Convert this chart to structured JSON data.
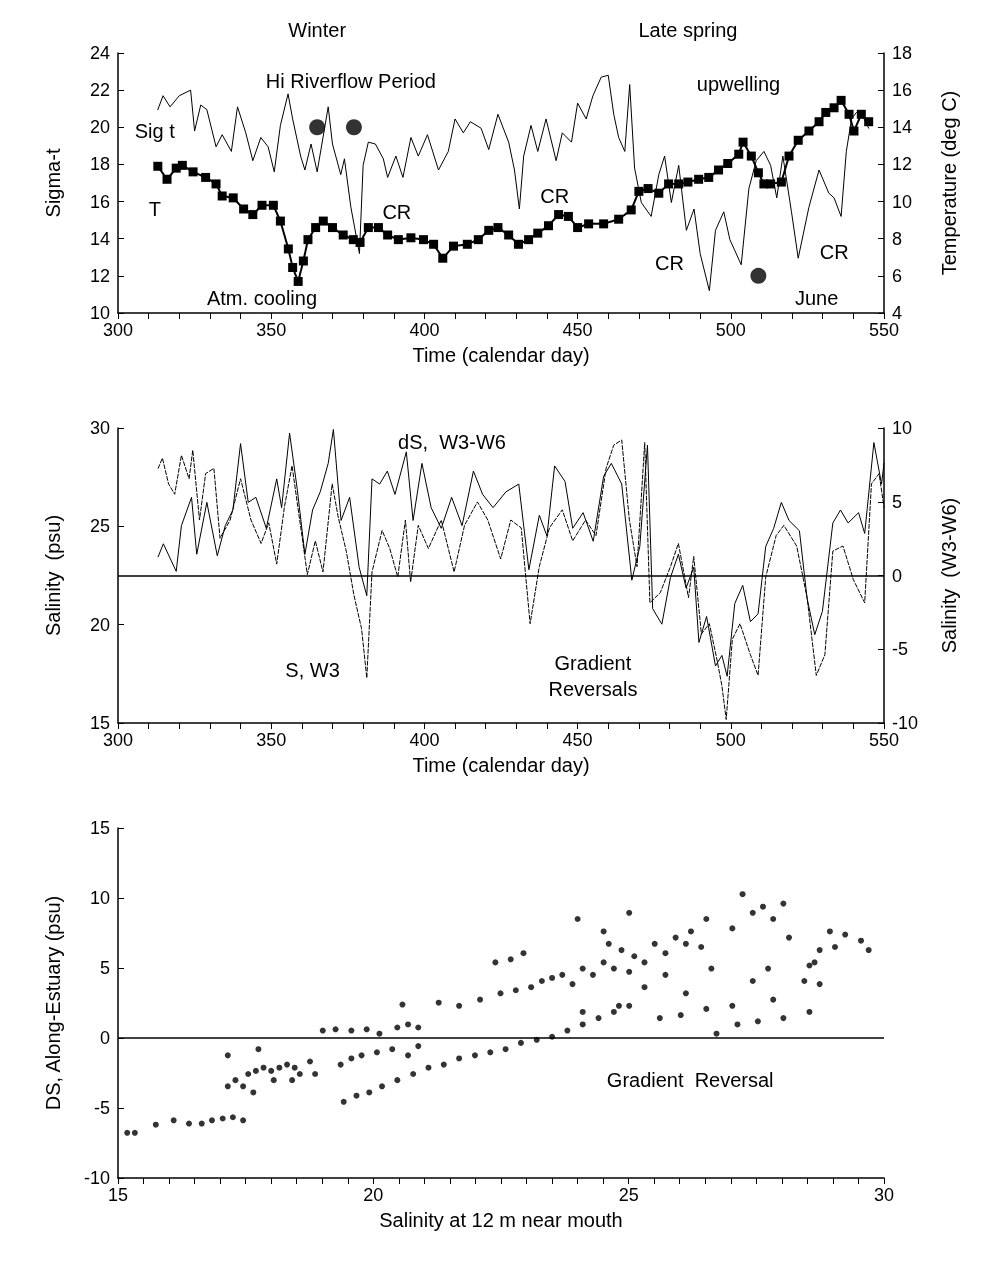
{
  "chart_data": [
    {
      "type": "line",
      "xlabel": "Time (calendar day)",
      "ylabel": "Sigma-t",
      "y2label": "Temperature (deg C)",
      "xlim": [
        300,
        550
      ],
      "xticks": [
        300,
        {
          "value": 310,
          "label": null
        },
        {
          "value": 320,
          "label": null
        },
        {
          "value": 330,
          "label": null
        },
        {
          "value": 340,
          "label": null
        },
        350,
        {
          "value": 360,
          "label": null
        },
        {
          "value": 370,
          "label": null
        },
        {
          "value": 380,
          "label": null
        },
        {
          "value": 390,
          "label": null
        },
        400,
        {
          "value": 410,
          "label": null
        },
        {
          "value": 420,
          "label": null
        },
        {
          "value": 430,
          "label": null
        },
        {
          "value": 440,
          "label": null
        },
        450,
        {
          "value": 460,
          "label": null
        },
        {
          "value": 470,
          "label": null
        },
        {
          "value": 480,
          "label": null
        },
        {
          "value": 490,
          "label": null
        },
        500,
        {
          "value": 510,
          "label": null
        },
        {
          "value": 520,
          "label": null
        },
        {
          "value": 530,
          "label": null
        },
        {
          "value": 540,
          "label": null
        },
        550
      ],
      "ylim": [
        10,
        24
      ],
      "yticks": [
        10,
        12,
        14,
        16,
        18,
        20,
        22,
        24
      ],
      "y2lim": [
        4,
        18
      ],
      "y2ticks": [
        4,
        6,
        8,
        10,
        12,
        14,
        16,
        18
      ],
      "series": [
        {
          "color": "#000000",
          "marker": "none",
          "line_style": "solid",
          "x": [
            313,
            314.7,
            317,
            320,
            323.7,
            325,
            327,
            329,
            332,
            334,
            337,
            339,
            341.7,
            344,
            346.6,
            349,
            351,
            353,
            355.5,
            357,
            359.6,
            361,
            363,
            365,
            368.6,
            370,
            372.7,
            373.9,
            376,
            378.8,
            380,
            381.7,
            384,
            386.6,
            388,
            390.7,
            393,
            395.6,
            398,
            401,
            404.6,
            407.8,
            410,
            412.7,
            415,
            418.5,
            421,
            424,
            427.5,
            429.4,
            431,
            432.4,
            434.8,
            437,
            439.7,
            443,
            445,
            448,
            450,
            452.8,
            455,
            457.7,
            460,
            461.8,
            463.4,
            465.4,
            467,
            468.6,
            470.8,
            474,
            476.5,
            478.4,
            480.6,
            483,
            485.5,
            488,
            490,
            493,
            495,
            497.7,
            499.7,
            503.4,
            505.9,
            508.3,
            510.8,
            513,
            515,
            517,
            519.8,
            522,
            525.5,
            528.8,
            532,
            533.7,
            536,
            537.7,
            539.4,
            541,
            543.5,
            545
          ],
          "values": [
            20.95,
            21.7,
            21.1,
            21.7,
            22,
            19.8,
            21.2,
            20.95,
            18.95,
            19.6,
            18.7,
            21.1,
            19.7,
            18.2,
            19.45,
            18.95,
            17.6,
            20.1,
            21.8,
            20.45,
            18.45,
            17.7,
            19.1,
            17.6,
            21.1,
            19.1,
            17.45,
            18.3,
            15.7,
            13.2,
            17.95,
            19.2,
            19.1,
            18.3,
            17.3,
            18.45,
            17.3,
            19.45,
            18.45,
            19.6,
            17.7,
            18.7,
            20.45,
            19.7,
            20.3,
            19.95,
            18.8,
            20.7,
            19.2,
            17.7,
            15.6,
            18.45,
            20.1,
            18.7,
            20.45,
            18.2,
            19.7,
            19.2,
            21.3,
            20.45,
            21.7,
            22.7,
            22.8,
            20.7,
            19.45,
            18.7,
            22.3,
            17.8,
            15.95,
            15.2,
            17.45,
            18.45,
            15.95,
            17.95,
            14.45,
            15.6,
            13.2,
            11.2,
            14.45,
            15.45,
            13.95,
            12.6,
            16.7,
            18.2,
            18.7,
            17.95,
            16.2,
            18.45,
            15.45,
            12.95,
            15.7,
            17.7,
            16.45,
            16.2,
            15.2,
            18.7,
            20.45,
            20.8,
            20.45,
            19.95
          ]
        },
        {
          "color": "#000000",
          "marker": "square",
          "line_style": "dotted",
          "axis": "y2",
          "x": [
            313,
            316,
            319,
            321,
            324.5,
            328.6,
            332,
            334,
            337.6,
            341,
            344,
            347,
            350.7,
            353,
            355.6,
            357,
            358.8,
            360.5,
            362,
            364.5,
            367,
            370,
            373.5,
            376.8,
            379,
            381.7,
            385,
            388,
            391.5,
            395.6,
            399.7,
            403,
            406,
            409.5,
            414,
            417.6,
            421,
            424,
            427.5,
            430.7,
            434,
            437,
            440.5,
            443.8,
            447,
            450,
            453.6,
            458.5,
            463.4,
            467.5,
            470,
            473,
            476.5,
            479.7,
            483,
            486,
            489.5,
            492.8,
            496,
            499,
            502.6,
            504,
            506.7,
            509,
            510.8,
            513,
            516.5,
            519,
            522,
            525.5,
            528.8,
            531,
            533.7,
            536,
            538.6,
            540.2,
            542.6,
            545
          ],
          "values": [
            11.9,
            11.2,
            11.8,
            11.95,
            11.6,
            11.3,
            10.95,
            10.3,
            10.2,
            9.6,
            9.3,
            9.8,
            9.8,
            8.95,
            7.45,
            6.45,
            5.7,
            6.8,
            7.95,
            8.6,
            8.95,
            8.6,
            8.2,
            7.95,
            7.8,
            8.6,
            8.6,
            8.2,
            7.95,
            8.05,
            7.95,
            7.7,
            6.95,
            7.6,
            7.7,
            7.95,
            8.45,
            8.6,
            8.2,
            7.7,
            7.95,
            8.3,
            8.7,
            9.3,
            9.2,
            8.6,
            8.8,
            8.8,
            9.05,
            9.55,
            10.55,
            10.7,
            10.45,
            10.95,
            10.95,
            11.05,
            11.2,
            11.3,
            11.7,
            12.05,
            12.55,
            13.2,
            12.45,
            11.55,
            10.95,
            10.95,
            11.05,
            12.45,
            13.3,
            13.8,
            14.3,
            14.8,
            15.05,
            15.45,
            14.7,
            13.8,
            14.7,
            14.3
          ]
        },
        {
          "type": "scatter",
          "color": "#000000",
          "marker": "circle",
          "x": [
            365,
            377,
            509
          ],
          "values": [
            20,
            20,
            12
          ]
        }
      ],
      "annotations": [
        "Winter",
        "Late spring",
        "Hi Riverflow Period",
        "Sig t",
        "T",
        "Atm. cooling",
        "CR",
        "CR",
        "CR",
        "CR",
        "upwelling",
        "June"
      ]
    },
    {
      "type": "line",
      "xlabel": "Time (calendar day)",
      "ylabel": "Salinity  (psu)",
      "y2label": "Salinity  (W3-W6)",
      "xlim": [
        300,
        550
      ],
      "xticks": [
        300,
        {
          "value": 310,
          "label": null
        },
        {
          "value": 320,
          "label": null
        },
        {
          "value": 330,
          "label": null
        },
        {
          "value": 340,
          "label": null
        },
        350,
        {
          "value": 360,
          "label": null
        },
        {
          "value": 370,
          "label": null
        },
        {
          "value": 380,
          "label": null
        },
        {
          "value": 390,
          "label": null
        },
        400,
        {
          "value": 410,
          "label": null
        },
        {
          "value": 420,
          "label": null
        },
        {
          "value": 430,
          "label": null
        },
        {
          "value": 440,
          "label": null
        },
        450,
        {
          "value": 460,
          "label": null
        },
        {
          "value": 470,
          "label": null
        },
        {
          "value": 480,
          "label": null
        },
        {
          "value": 490,
          "label": null
        },
        500,
        {
          "value": 510,
          "label": null
        },
        {
          "value": 520,
          "label": null
        },
        {
          "value": 530,
          "label": null
        },
        {
          "value": 540,
          "label": null
        },
        550
      ],
      "ylim": [
        15,
        30
      ],
      "yticks": [
        15,
        20,
        25,
        30
      ],
      "y2lim": [
        -10,
        10
      ],
      "y2ticks": [
        -10,
        -5,
        0,
        5,
        10
      ],
      "ref_lines": [
        {
          "axis": "y2",
          "value": 0,
          "color": "#000000"
        }
      ],
      "series": [
        {
          "color": "#000000",
          "marker": "none",
          "line_style": "solid",
          "axis": "y2",
          "x": [
            313.1,
            314.8,
            319,
            320.7,
            324,
            325.7,
            329,
            332.4,
            335,
            337.5,
            340,
            342.5,
            345,
            348.4,
            351.8,
            353.4,
            356,
            358.5,
            361,
            363.5,
            366,
            368.6,
            370.3,
            372.8,
            375.6,
            378.7,
            381.2,
            382.9,
            385.4,
            387.9,
            390.4,
            394.1,
            396.3,
            399.2,
            402.2,
            405.5,
            408.9,
            412.3,
            416,
            419,
            422.4,
            426.6,
            430.8,
            434.1,
            437.5,
            440,
            442.5,
            445.9,
            448.4,
            451.8,
            455.1,
            458.5,
            461,
            464.4,
            467.7,
            470.3,
            472.8,
            474.5,
            477.5,
            480.3,
            482.9,
            485.4,
            487.9,
            489.6,
            492.1,
            495,
            497.1,
            498.8,
            501.3,
            503.9,
            506.4,
            508.9,
            511.4,
            514,
            516.5,
            519,
            522.4,
            524.9,
            527.4,
            529.9,
            533.3,
            535.8,
            538.3,
            541.7,
            543.7,
            546.7,
            549.2,
            550
          ],
          "values": [
            1.27,
            2.15,
            0.28,
            3.38,
            5.3,
            1.44,
            4.96,
            1.34,
            3.38,
            4.44,
            8.94,
            4.96,
            5.3,
            3.2,
            6.55,
            4.6,
            9.65,
            5.85,
            1.44,
            4.44,
            5.67,
            7.6,
            9.9,
            3.73,
            5.3,
            0.56,
            -1.37,
            6.55,
            6.2,
            7.08,
            5.5,
            8.38,
            3.73,
            7.6,
            4.6,
            3.2,
            5.3,
            3.38,
            7.08,
            5.5,
            4.6,
            5.67,
            6.2,
            0.39,
            4.08,
            2.68,
            7.43,
            6.37,
            3.2,
            4.26,
            2.32,
            6.73,
            7.6,
            6.2,
            -0.32,
            1.97,
            8.84,
            -2.25,
            -3.3,
            -0.14,
            1.44,
            -0.85,
            0.56,
            -4.54,
            -2.78,
            -6.13,
            -5.42,
            -6.83,
            -1.9,
            -0.67,
            -3.13,
            -2.6,
            1.97,
            3.2,
            4.96,
            3.73,
            3.03,
            -1.55,
            -4.01,
            -2.43,
            3.56,
            4.44,
            3.56,
            4.26,
            2.85,
            9.01,
            6.2,
            7.6
          ]
        },
        {
          "color": "#000000",
          "marker": "none",
          "line_style": "dashed",
          "x": [
            313.1,
            314.5,
            316.5,
            318.5,
            320.7,
            323.2,
            324.4,
            326.6,
            328.6,
            331.3,
            333.3,
            336.6,
            340,
            343.4,
            346.7,
            349.2,
            351.8,
            354.3,
            356.8,
            359.3,
            361.8,
            364.4,
            366.9,
            369.9,
            371.9,
            374.5,
            377,
            379.5,
            381.2,
            382.9,
            386.2,
            388.7,
            391.3,
            393.8,
            395.5,
            398,
            401.3,
            405.5,
            409.7,
            413.1,
            417.3,
            420.7,
            424.9,
            428.2,
            431.6,
            434.5,
            437.5,
            440.8,
            445,
            448.4,
            452.6,
            456,
            459.3,
            461.8,
            464.4,
            466.9,
            469.4,
            471.9,
            473.6,
            477,
            480.3,
            482.9,
            486.2,
            487.9,
            490.4,
            493,
            495.5,
            497.1,
            498.5,
            500.5,
            503,
            506.4,
            508.9,
            511.4,
            514.8,
            517.3,
            521.5,
            524.9,
            527.9,
            530.7,
            533.3,
            536.6,
            540,
            543.7,
            545.9,
            548.4,
            550
          ],
          "values": [
            27.95,
            28.47,
            27.16,
            26.63,
            28.61,
            27.42,
            28.87,
            25.32,
            27.68,
            27.95,
            24.39,
            25.32,
            27.42,
            25.32,
            24.13,
            25.18,
            23.08,
            25.97,
            28.08,
            25.32,
            22.55,
            24.26,
            22.68,
            27.16,
            25.45,
            23.74,
            21.5,
            19.79,
            17.29,
            22.68,
            24.79,
            23.87,
            22.42,
            25.32,
            22.16,
            25.05,
            23.87,
            25.32,
            22.68,
            25.05,
            26.24,
            25.32,
            23.34,
            25.32,
            24.92,
            20.05,
            22.95,
            24.92,
            25.84,
            24.26,
            25.32,
            24.53,
            27.95,
            29.13,
            29.39,
            25.32,
            22.95,
            29.26,
            21.11,
            21.63,
            22.95,
            24.13,
            21.37,
            23.47,
            19.53,
            20.05,
            18.21,
            16.89,
            15.18,
            19.26,
            20.05,
            18.47,
            17.42,
            22.42,
            24.53,
            25.05,
            24,
            21.37,
            17.42,
            18.47,
            23.74,
            24,
            22.29,
            21.11,
            27.16,
            27.68,
            25.97
          ]
        }
      ],
      "annotations": [
        "dS,  W3-W6",
        "S, W3",
        "Gradient\nReversals"
      ]
    },
    {
      "type": "scatter",
      "xlabel": "Salinity at 12 m near mouth",
      "ylabel": "DS, Along-Estuary (psu)",
      "xlim": [
        15,
        30
      ],
      "xticks": [
        15,
        {
          "value": 15.5,
          "label": null
        },
        {
          "value": 16,
          "label": null
        },
        {
          "value": 16.5,
          "label": null
        },
        {
          "value": 17,
          "label": null
        },
        {
          "value": 17.5,
          "label": null
        },
        {
          "value": 18,
          "label": null
        },
        {
          "value": 18.5,
          "label": null
        },
        {
          "value": 19,
          "label": null
        },
        {
          "value": 19.5,
          "label": null
        },
        20,
        {
          "value": 20.5,
          "label": null
        },
        {
          "value": 21,
          "label": null
        },
        {
          "value": 21.5,
          "label": null
        },
        {
          "value": 22,
          "label": null
        },
        {
          "value": 22.5,
          "label": null
        },
        {
          "value": 23,
          "label": null
        },
        {
          "value": 23.5,
          "label": null
        },
        {
          "value": 24,
          "label": null
        },
        {
          "value": 24.5,
          "label": null
        },
        25,
        {
          "value": 25.5,
          "label": null
        },
        {
          "value": 26,
          "label": null
        },
        {
          "value": 26.5,
          "label": null
        },
        {
          "value": 27,
          "label": null
        },
        {
          "value": 27.5,
          "label": null
        },
        {
          "value": 28,
          "label": null
        },
        {
          "value": 28.5,
          "label": null
        },
        {
          "value": 29,
          "label": null
        },
        {
          "value": 29.5,
          "label": null
        },
        30
      ],
      "ylim": [
        -10,
        15
      ],
      "yticks": [
        -10,
        -5,
        0,
        5,
        10,
        15
      ],
      "ref_lines": [
        {
          "axis": "y",
          "value": 0,
          "color": "#000000"
        }
      ],
      "series": [
        {
          "color": "#000000",
          "marker": "circle",
          "x": [
            15.18,
            15.33,
            15.74,
            16.09,
            16.39,
            16.64,
            16.84,
            17.05,
            17.25,
            17.45,
            17.15,
            17.3,
            17.45,
            17.55,
            17.7,
            17.85,
            18.0,
            18.16,
            18.31,
            18.46,
            18.56,
            18.76,
            18.86,
            17.65,
            17.15,
            17.75,
            18.05,
            18.41,
            19.01,
            19.26,
            19.57,
            19.87,
            20.12,
            20.47,
            20.68,
            20.88,
            19.36,
            19.57,
            19.77,
            20.07,
            20.37,
            20.68,
            20.88,
            19.42,
            19.67,
            19.92,
            20.17,
            20.47,
            20.78,
            21.08,
            21.38,
            21.68,
            21.99,
            22.29,
            22.59,
            22.89,
            23.2,
            23.5,
            23.8,
            24.1,
            24.41,
            24.71,
            25.01,
            20.57,
            21.28,
            21.68,
            22.09,
            22.39,
            22.69,
            22.94,
            22.49,
            22.79,
            23.09,
            23.3,
            23.5,
            23.7,
            23.9,
            24.1,
            24.3,
            24.51,
            24.61,
            24.71,
            24.86,
            25.01,
            25.11,
            25.31,
            25.51,
            25.72,
            25.92,
            26.12,
            26.22,
            26.42,
            26.62,
            26.52,
            27.03,
            27.23,
            27.43,
            27.63,
            27.83,
            28.03,
            24.51,
            25.01,
            24.0,
            25.31,
            24.81,
            24.1,
            25.72,
            26.12,
            25.61,
            26.02,
            26.52,
            27.03,
            27.43,
            27.73,
            27.83,
            27.53,
            28.03,
            28.54,
            26.72,
            27.13,
            28.44,
            28.74,
            28.54,
            28.74,
            29.04,
            29.24,
            28.94,
            29.55,
            29.7,
            28.14,
            28.64
          ],
          "values": [
            -6.77,
            -6.77,
            -6.19,
            -5.88,
            -6.11,
            -6.11,
            -5.88,
            -5.75,
            -5.66,
            -5.88,
            -3.45,
            -3.01,
            -3.45,
            -2.57,
            -2.35,
            -2.12,
            -2.35,
            -2.12,
            -1.9,
            -2.12,
            -2.57,
            -1.68,
            -2.57,
            -3.89,
            -1.24,
            -0.8,
            -3.01,
            -3.01,
            0.53,
            0.62,
            0.53,
            0.62,
            0.31,
            0.75,
            0.97,
            0.75,
            -1.9,
            -1.46,
            -1.24,
            -1.02,
            -0.8,
            -1.24,
            -0.58,
            -4.56,
            -4.12,
            -3.89,
            -3.45,
            -3.01,
            -2.57,
            -2.12,
            -1.9,
            -1.46,
            -1.24,
            -1.02,
            -0.8,
            -0.35,
            -0.13,
            0.09,
            0.53,
            0.97,
            1.42,
            1.86,
            2.3,
            2.39,
            2.52,
            2.3,
            2.74,
            5.4,
            5.62,
            6.06,
            3.19,
            3.41,
            3.63,
            4.07,
            4.29,
            4.51,
            3.85,
            4.96,
            4.51,
            5.4,
            6.73,
            4.96,
            6.28,
            4.73,
            5.84,
            5.4,
            6.73,
            6.06,
            7.17,
            6.73,
            7.61,
            6.5,
            4.96,
            8.5,
            7.83,
            10.27,
            8.94,
            9.38,
            8.5,
            9.6,
            7.61,
            8.94,
            8.5,
            3.63,
            2.3,
            1.86,
            4.51,
            3.19,
            1.42,
            1.64,
            2.08,
            2.3,
            4.07,
            4.96,
            2.74,
            1.19,
            1.42,
            1.86,
            0.31,
            0.97,
            4.07,
            3.85,
            5.18,
            6.28,
            6.5,
            7.39,
            7.61,
            6.95,
            6.28,
            7.17,
            5.4
          ]
        }
      ],
      "annotations": [
        "Gradient  Reversal"
      ]
    }
  ]
}
